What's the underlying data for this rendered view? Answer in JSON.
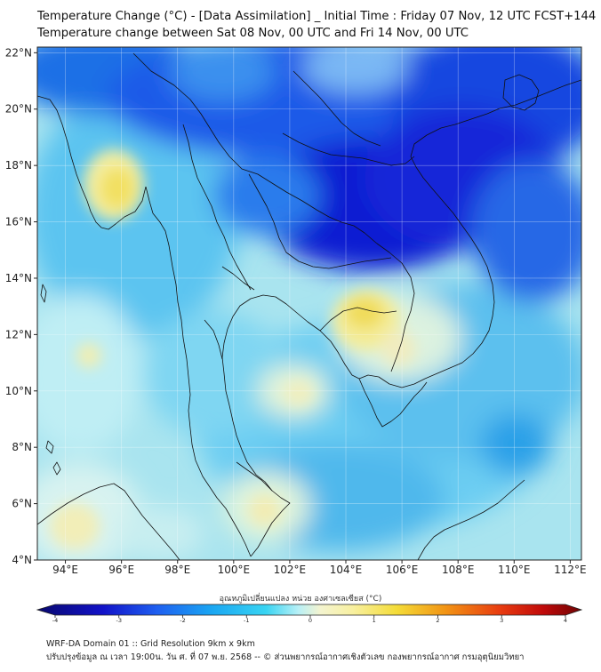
{
  "header": {
    "title_line1": "Temperature Change (°C) - [Data Assimilation] _ Initial Time : Friday 07 Nov, 12 UTC FCST+144",
    "title_line2": "Temperature change between Sat 08 Nov, 00 UTC and Fri 14 Nov, 00 UTC"
  },
  "map": {
    "lat_labels": [
      "22°N",
      "20°N",
      "18°N",
      "16°N",
      "14°N",
      "12°N",
      "10°N",
      "8°N",
      "6°N",
      "4°N"
    ],
    "lon_labels": [
      "94°E",
      "96°E",
      "98°E",
      "100°E",
      "102°E",
      "104°E",
      "106°E",
      "108°E",
      "110°E",
      "112°E"
    ],
    "lat_values": [
      22,
      20,
      18,
      16,
      14,
      12,
      10,
      8,
      6,
      4
    ],
    "lon_values": [
      94,
      96,
      98,
      100,
      102,
      104,
      106,
      108,
      110,
      112
    ],
    "lat_range": [
      4,
      22.2
    ],
    "lon_range": [
      93,
      112.4
    ],
    "colors": {
      "ocean": "#a9e4ef",
      "coast": "#111111"
    }
  },
  "colorbar": {
    "label": "อุณหภูมิเปลี่ยนแปลง หน่วย องศาเซลเซียส (°C)",
    "ticks": [
      "-4",
      "-3",
      "-2",
      "-1",
      "0",
      "1",
      "2",
      "3",
      "4"
    ],
    "min": -4,
    "max": 4
  },
  "footer": {
    "line1": "WRF-DA Domain 01 :: Grid Resolution 9km x 9km",
    "line2": "ปรับปรุงข้อมูล ณ เวลา 19:00น. วัน ศ. ที่ 07 พ.ย. 2568 -- © ส่วนพยากรณ์อากาศเชิงตัวเลข กองพยากรณ์อากาศ กรมอุตุนิยมวิทยา"
  }
}
